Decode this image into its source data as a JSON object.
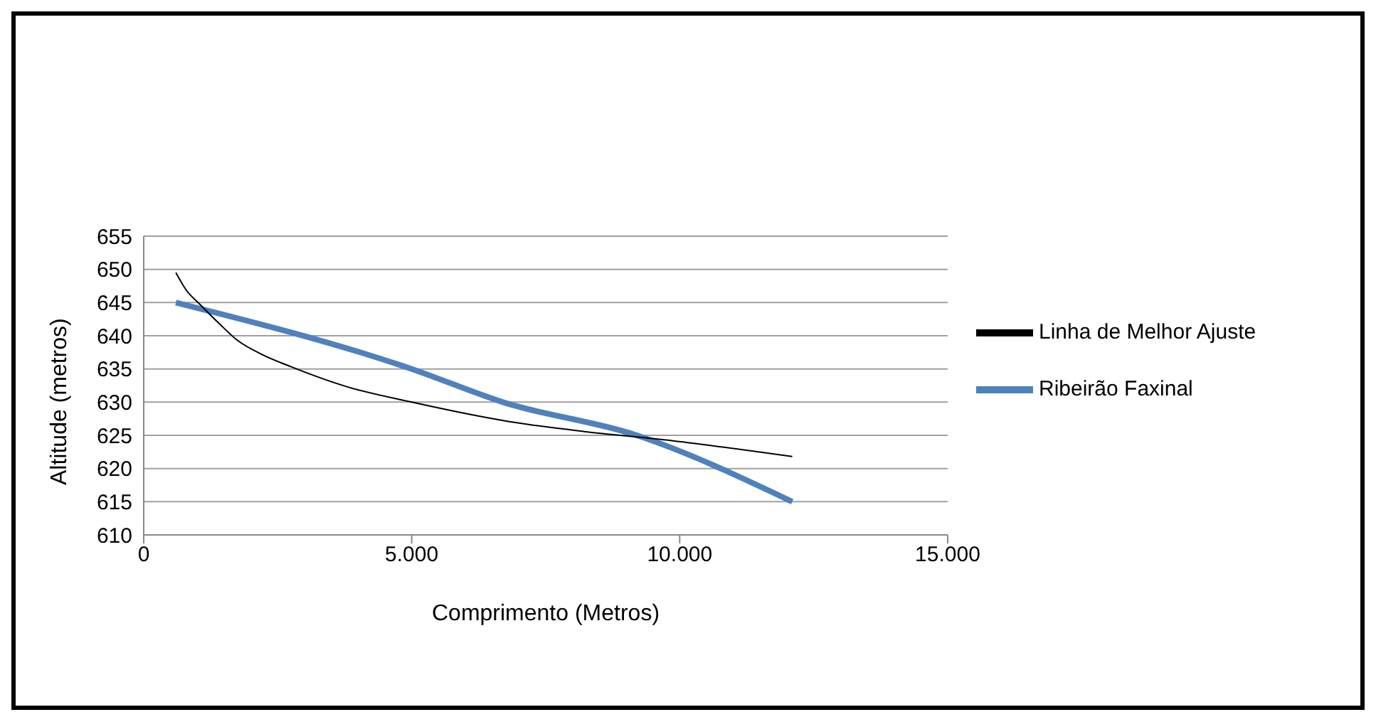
{
  "chart_data": {
    "type": "line",
    "xlabel": "Comprimento  (Metros)",
    "ylabel": "Altitude (metros)",
    "series": [
      {
        "name": "Ribeirão Faxinal",
        "color": "#4f81bd",
        "x": [
          600,
          5000,
          6700,
          9200,
          12100
        ],
        "values": [
          645,
          635,
          630,
          625,
          615
        ]
      },
      {
        "name": "Linha de Melhor Ajuste",
        "color": "#000000",
        "x": [
          600,
          800,
          1040,
          1400,
          1750,
          2200,
          2760,
          3800,
          5000,
          6800,
          8200,
          9850,
          12100
        ],
        "values": [
          649.5,
          646.8,
          644.8,
          641.9,
          639.3,
          637.2,
          635.3,
          632.3,
          630,
          627.1,
          625.6,
          624.2,
          621.8
        ]
      }
    ],
    "xlim": [
      0,
      15000
    ],
    "xticks": [
      0,
      {
        "value": 5000,
        "label": "5.000"
      },
      {
        "value": 10000,
        "label": "10.000"
      },
      {
        "value": 15000,
        "label": "15.000"
      }
    ],
    "ylim": [
      610,
      655
    ],
    "yticks": [
      610,
      615,
      620,
      625,
      630,
      635,
      640,
      645,
      650,
      655
    ],
    "grid": "y",
    "legend": "right",
    "marker": "none",
    "line_style": "solid"
  }
}
